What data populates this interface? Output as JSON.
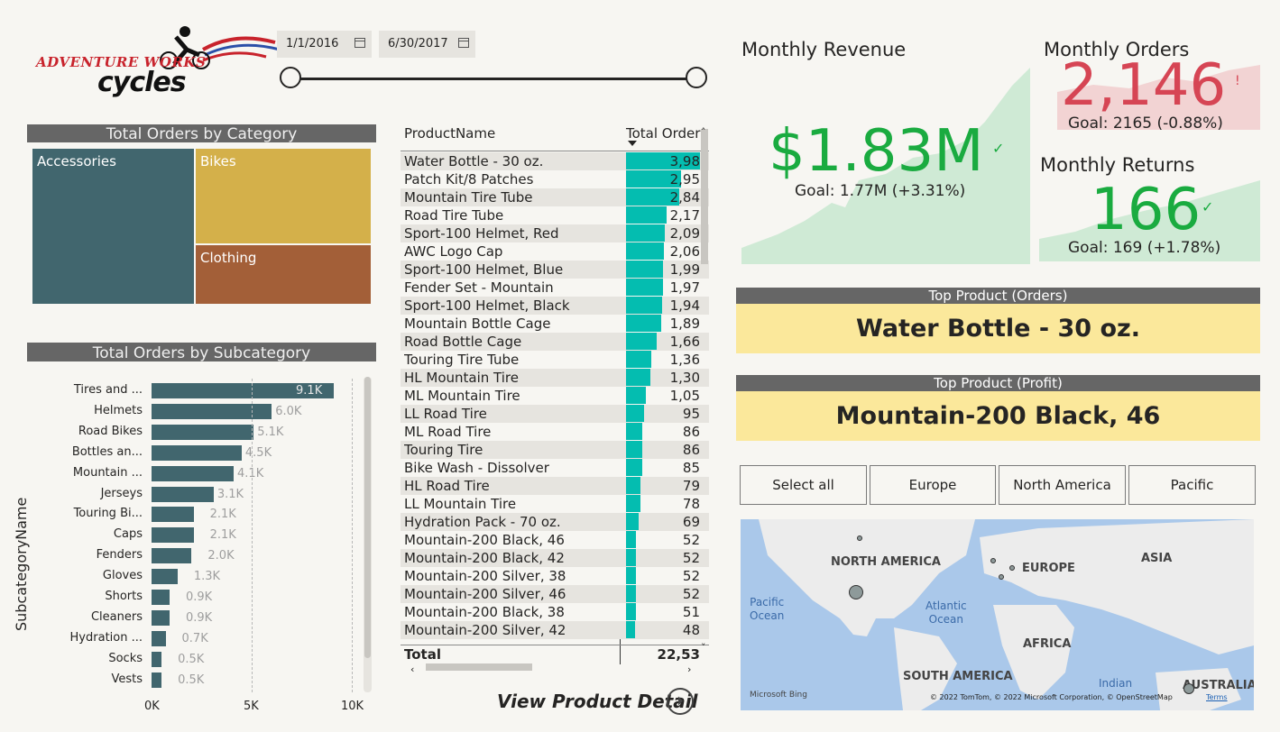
{
  "logo": {
    "line1": "ADVENTURE WORKS",
    "line2": "cycles"
  },
  "date_slicer": {
    "start": "1/1/2016",
    "end": "6/30/2017"
  },
  "category_chart": {
    "title": "Total Orders by Category",
    "items": [
      {
        "name": "Accessories",
        "color": "#41666e"
      },
      {
        "name": "Bikes",
        "color": "#d4b04a"
      },
      {
        "name": "Clothing",
        "color": "#a35f38"
      }
    ]
  },
  "subcategory_chart": {
    "title": "Total Orders by Subcategory",
    "ylabel": "SubcategoryName",
    "ticks": [
      "0K",
      "5K",
      "10K"
    ]
  },
  "chart_data": {
    "type": "bar",
    "title": "Total Orders by Subcategory",
    "xlabel": "",
    "ylabel": "SubcategoryName",
    "xlim": [
      0,
      10000
    ],
    "categories": [
      "Tires and ...",
      "Helmets",
      "Road Bikes",
      "Bottles an...",
      "Mountain ...",
      "Jerseys",
      "Touring Bi...",
      "Caps",
      "Fenders",
      "Gloves",
      "Shorts",
      "Cleaners",
      "Hydration ...",
      "Socks",
      "Vests"
    ],
    "values": [
      9100,
      6000,
      5100,
      4500,
      4100,
      3100,
      2100,
      2100,
      2000,
      1300,
      900,
      900,
      700,
      500,
      500
    ],
    "labels": [
      "9.1K",
      "6.0K",
      "5.1K",
      "4.5K",
      "4.1K",
      "3.1K",
      "2.1K",
      "2.1K",
      "2.0K",
      "1.3K",
      "0.9K",
      "0.9K",
      "0.7K",
      "0.5K",
      "0.5K"
    ]
  },
  "product_table": {
    "col1": "ProductName",
    "col2": "Total Order",
    "rows": [
      {
        "name": "Water Bottle - 30 oz.",
        "value": "3,98",
        "v": 3980
      },
      {
        "name": "Patch Kit/8 Patches",
        "value": "2,95",
        "v": 2950
      },
      {
        "name": "Mountain Tire Tube",
        "value": "2,84",
        "v": 2840
      },
      {
        "name": "Road Tire Tube",
        "value": "2,17",
        "v": 2170
      },
      {
        "name": "Sport-100 Helmet, Red",
        "value": "2,09",
        "v": 2090
      },
      {
        "name": "AWC Logo Cap",
        "value": "2,06",
        "v": 2060
      },
      {
        "name": "Sport-100 Helmet, Blue",
        "value": "1,99",
        "v": 1990
      },
      {
        "name": "Fender Set - Mountain",
        "value": "1,97",
        "v": 1970
      },
      {
        "name": "Sport-100 Helmet, Black",
        "value": "1,94",
        "v": 1940
      },
      {
        "name": "Mountain Bottle Cage",
        "value": "1,89",
        "v": 1890
      },
      {
        "name": "Road Bottle Cage",
        "value": "1,66",
        "v": 1660
      },
      {
        "name": "Touring Tire Tube",
        "value": "1,36",
        "v": 1360
      },
      {
        "name": "HL Mountain Tire",
        "value": "1,30",
        "v": 1300
      },
      {
        "name": "ML Mountain Tire",
        "value": "1,05",
        "v": 1050
      },
      {
        "name": "LL Road Tire",
        "value": "95",
        "v": 950
      },
      {
        "name": "ML Road Tire",
        "value": "86",
        "v": 860
      },
      {
        "name": "Touring Tire",
        "value": "86",
        "v": 860
      },
      {
        "name": "Bike Wash - Dissolver",
        "value": "85",
        "v": 850
      },
      {
        "name": "HL Road Tire",
        "value": "79",
        "v": 790
      },
      {
        "name": "LL Mountain Tire",
        "value": "78",
        "v": 780
      },
      {
        "name": "Hydration Pack - 70 oz.",
        "value": "69",
        "v": 690
      },
      {
        "name": "Mountain-200 Black, 46",
        "value": "52",
        "v": 520
      },
      {
        "name": "Mountain-200 Black, 42",
        "value": "52",
        "v": 520
      },
      {
        "name": "Mountain-200 Silver, 38",
        "value": "52",
        "v": 520
      },
      {
        "name": "Mountain-200 Silver, 46",
        "value": "52",
        "v": 520
      },
      {
        "name": "Mountain-200 Black, 38",
        "value": "51",
        "v": 510
      },
      {
        "name": "Mountain-200 Silver, 42",
        "value": "48",
        "v": 480
      }
    ],
    "total_label": "Total",
    "total_value": "22,53"
  },
  "view_detail": "View Product Detail",
  "kpi": {
    "revenue": {
      "title": "Monthly Revenue",
      "value": "$1.83M",
      "goal": "Goal: 1.77M (+3.31%)",
      "status": "✓"
    },
    "orders": {
      "title": "Monthly Orders",
      "value": "2,146",
      "goal": "Goal: 2165 (-0.88%)",
      "status": "!"
    },
    "returns": {
      "title": "Monthly Returns",
      "value": "166",
      "goal": "Goal: 169 (+1.78%)",
      "status": "✓"
    }
  },
  "top_products": {
    "orders_title": "Top Product (Orders)",
    "orders_value": "Water Bottle - 30 oz.",
    "profit_title": "Top Product (Profit)",
    "profit_value": "Mountain-200 Black, 46"
  },
  "region_slicer": [
    "Select all",
    "Europe",
    "North America",
    "Pacific"
  ],
  "map": {
    "labels": [
      "NORTH AMERICA",
      "EUROPE",
      "ASIA",
      "AFRICA",
      "SOUTH AMERICA",
      "AUSTRALIA"
    ],
    "oceans": [
      "Pacific\nOcean",
      "Atlantic\nOcean",
      "Indian"
    ],
    "bing": "Microsoft Bing",
    "attribution": "© 2022 TomTom, © 2022 Microsoft Corporation, © OpenStreetMap",
    "terms": "Terms"
  }
}
